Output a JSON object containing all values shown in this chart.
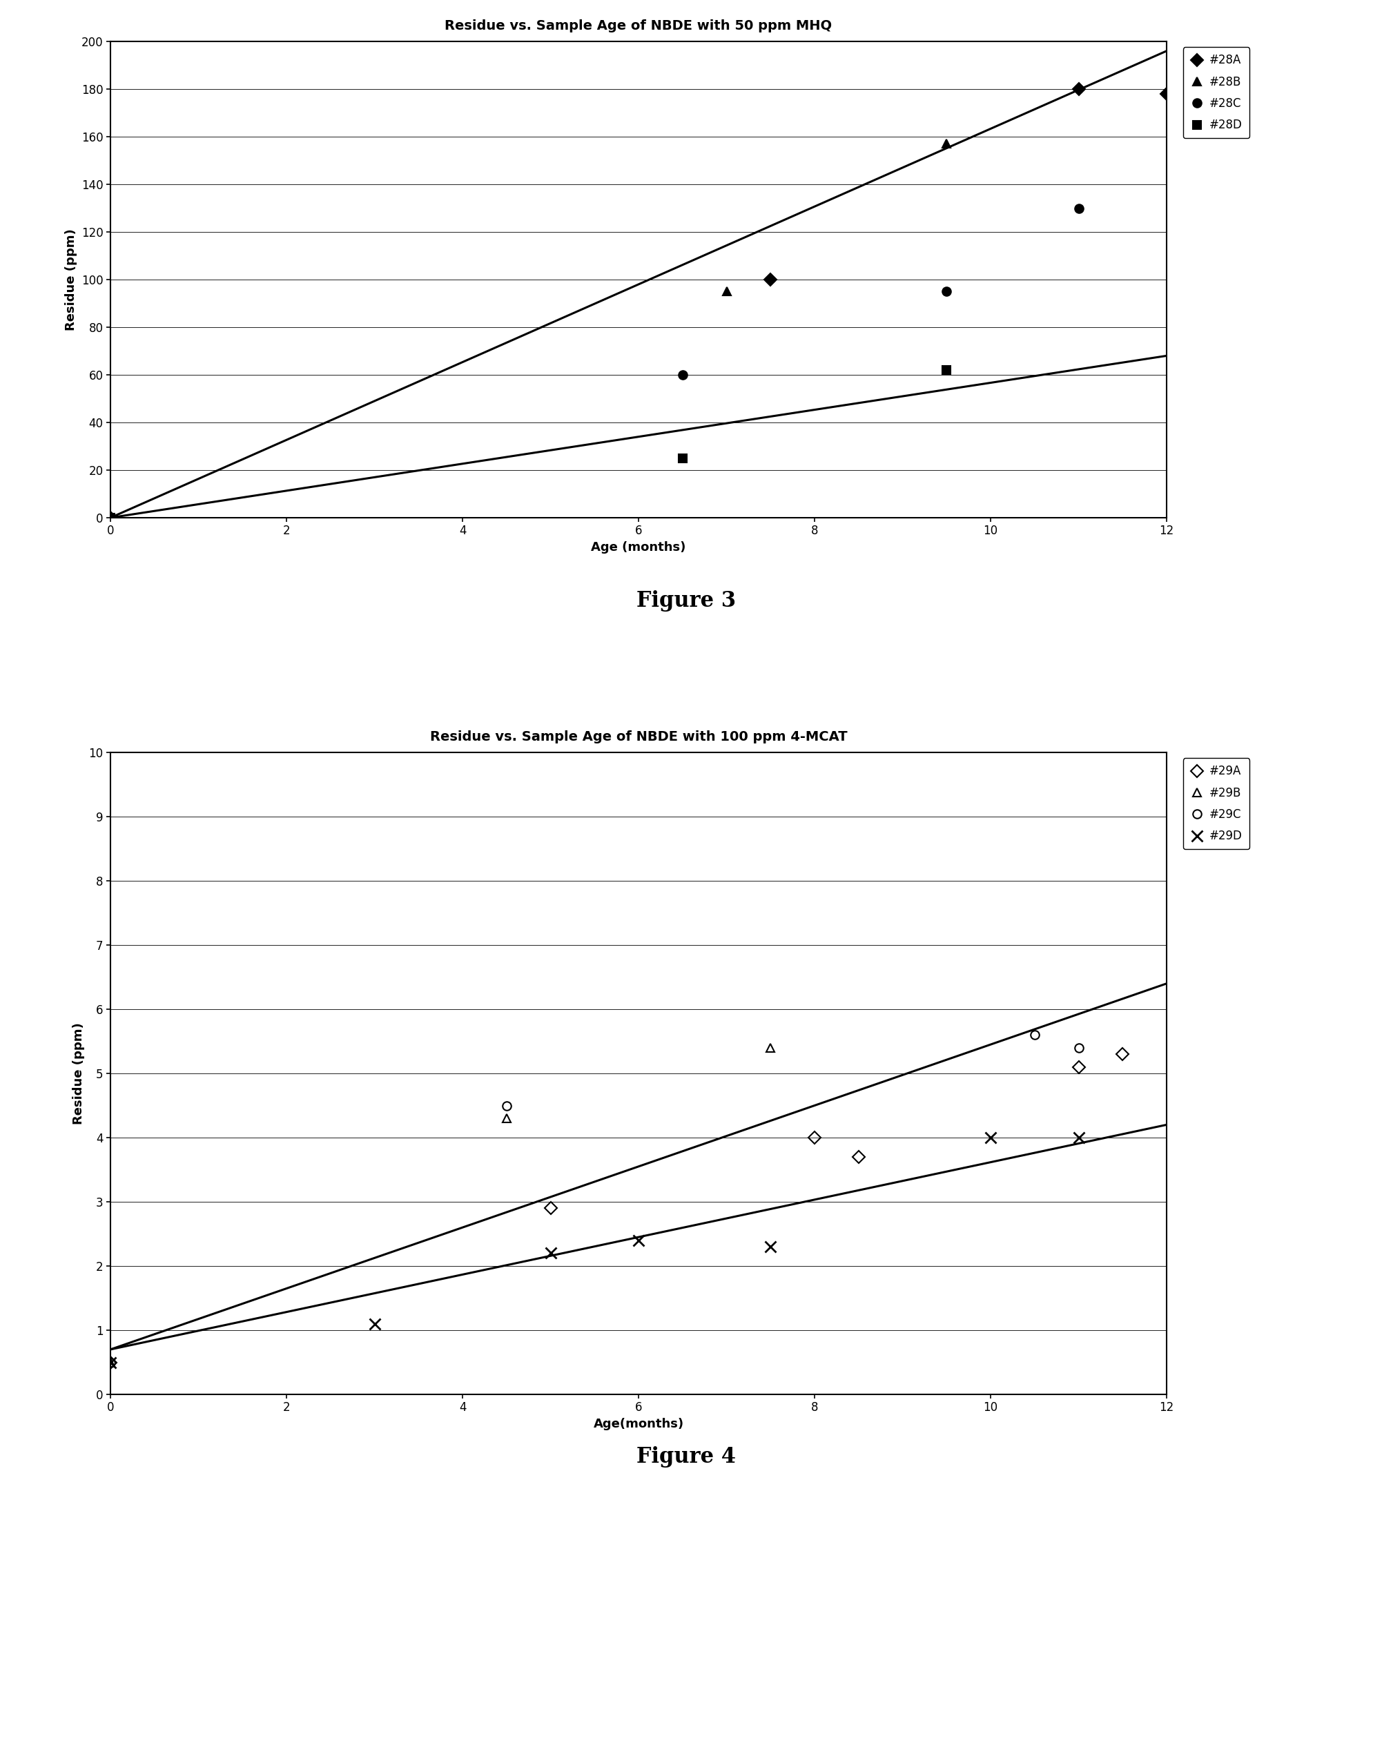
{
  "fig3": {
    "title": "Residue vs. Sample Age of NBDE with 50 ppm MHQ",
    "xlabel": "Age (months)",
    "ylabel": "Residue (ppm)",
    "xlim": [
      0,
      12
    ],
    "ylim": [
      0,
      200
    ],
    "yticks": [
      0,
      20,
      40,
      60,
      80,
      100,
      120,
      140,
      160,
      180,
      200
    ],
    "xticks": [
      0,
      2,
      4,
      6,
      8,
      10,
      12
    ],
    "series": [
      {
        "key": "28A",
        "x": [
          0,
          7.5,
          11,
          12
        ],
        "y": [
          0,
          100,
          180,
          178
        ],
        "marker": "D",
        "filled": true,
        "label": "#28A"
      },
      {
        "key": "28B",
        "x": [
          0,
          7,
          9.5
        ],
        "y": [
          0,
          95,
          157
        ],
        "marker": "^",
        "filled": true,
        "label": "#28B"
      },
      {
        "key": "28C",
        "x": [
          0,
          6.5,
          9.5,
          11
        ],
        "y": [
          0,
          60,
          95,
          130
        ],
        "marker": "o",
        "filled": true,
        "label": "#28C"
      },
      {
        "key": "28D",
        "x": [
          0,
          6.5,
          9.5
        ],
        "y": [
          0,
          25,
          62
        ],
        "marker": "s",
        "filled": true,
        "label": "#28D"
      }
    ],
    "trendlines": [
      {
        "x": [
          0,
          12
        ],
        "y": [
          0,
          196
        ]
      },
      {
        "x": [
          0,
          12
        ],
        "y": [
          0,
          68
        ]
      }
    ]
  },
  "fig4": {
    "title": "Residue vs. Sample Age of NBDE with 100 ppm 4-MCAT",
    "xlabel": "Age(months)",
    "ylabel": "Residue (ppm)",
    "xlim": [
      0,
      12
    ],
    "ylim": [
      0,
      10
    ],
    "yticks": [
      0,
      1,
      2,
      3,
      4,
      5,
      6,
      7,
      8,
      9,
      10
    ],
    "xticks": [
      0,
      2,
      4,
      6,
      8,
      10,
      12
    ],
    "series": [
      {
        "key": "29A",
        "x": [
          0,
          5,
          8,
          8.5,
          11,
          11.5
        ],
        "y": [
          0.5,
          2.9,
          4.0,
          3.7,
          5.1,
          5.3
        ],
        "marker": "D",
        "filled": false,
        "label": "#29A"
      },
      {
        "key": "29B",
        "x": [
          0,
          4.5,
          7.5
        ],
        "y": [
          0.5,
          4.3,
          5.4
        ],
        "marker": "^",
        "filled": false,
        "label": "#29B"
      },
      {
        "key": "29C",
        "x": [
          0,
          4.5,
          10.5,
          11
        ],
        "y": [
          0.5,
          4.5,
          5.6,
          5.4
        ],
        "marker": "o",
        "filled": false,
        "label": "#29C"
      },
      {
        "key": "29D",
        "x": [
          0,
          3,
          5,
          6,
          7.5,
          10,
          11
        ],
        "y": [
          0.5,
          1.1,
          2.2,
          2.4,
          2.3,
          4.0,
          4.0
        ],
        "marker": "x",
        "filled": false,
        "label": "#29D"
      }
    ],
    "trendlines": [
      {
        "x": [
          0,
          12
        ],
        "y": [
          0.7,
          6.4
        ]
      },
      {
        "x": [
          0,
          12
        ],
        "y": [
          0.7,
          4.2
        ]
      }
    ]
  },
  "figure3_label": "Figure 3",
  "figure4_label": "Figure 4",
  "background_color": "#ffffff",
  "line_color": "#000000",
  "marker_color": "#000000",
  "marker_size": 9,
  "linewidth": 2.2,
  "title_fontsize": 14,
  "label_fontsize": 13,
  "tick_fontsize": 12,
  "legend_fontsize": 12,
  "figlabel_fontsize": 22
}
